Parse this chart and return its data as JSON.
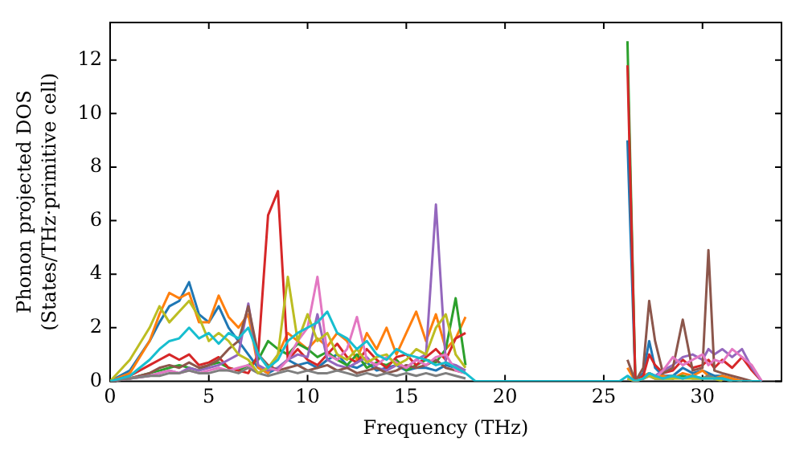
{
  "chart_data": {
    "type": "line",
    "xlabel": "Frequency (THz)",
    "ylabel": "Phonon projected DOS\n(States/THz·primitive cell)",
    "xlim": [
      0,
      34
    ],
    "ylim": [
      0,
      13.4
    ],
    "xticks": [
      0,
      5,
      10,
      15,
      20,
      25,
      30
    ],
    "yticks": [
      0,
      2,
      4,
      6,
      8,
      10,
      12
    ],
    "grid": false,
    "legend": false,
    "marker": "none",
    "line_style": "solid",
    "x": [
      0,
      1,
      2,
      2.5,
      3,
      3.5,
      4,
      4.5,
      5,
      5.5,
      6,
      6.5,
      7,
      7.5,
      8,
      8.5,
      9,
      9.5,
      10,
      10.5,
      11,
      11.5,
      12,
      12.5,
      13,
      13.5,
      14,
      14.5,
      15,
      15.5,
      16,
      16.5,
      17,
      17.5,
      18,
      18.5,
      20,
      25.8,
      26.2,
      26.6,
      27,
      27.3,
      27.6,
      28,
      28.5,
      29,
      29.5,
      30,
      30.3,
      30.6,
      31,
      31.5,
      32,
      32.5,
      33
    ],
    "series": [
      {
        "color": "#1f77b4",
        "values": [
          0,
          0.4,
          1.5,
          2.2,
          2.8,
          3.0,
          3.7,
          2.5,
          2.2,
          2.8,
          2.0,
          1.5,
          1.0,
          0.5,
          0.3,
          0.5,
          0.8,
          0.6,
          0.7,
          0.5,
          0.8,
          1.0,
          0.6,
          0.5,
          0.7,
          0.4,
          0.5,
          0.6,
          0.4,
          0.5,
          0.5,
          0.4,
          0.6,
          0.5,
          0.3,
          null,
          null,
          null,
          9.0,
          0,
          0.3,
          1.5,
          0.5,
          0.2,
          0.2,
          0.5,
          0.3,
          0.4,
          0.3,
          0.2,
          0.2,
          0.1,
          0,
          null,
          null
        ]
      },
      {
        "color": "#ff7f0e",
        "values": [
          0,
          0.3,
          1.5,
          2.5,
          3.3,
          3.1,
          3.3,
          2.2,
          2.2,
          3.2,
          2.4,
          2.0,
          2.5,
          0.5,
          0.3,
          1.0,
          1.8,
          1.5,
          1.2,
          1.6,
          1.3,
          1.8,
          1.5,
          0.8,
          1.8,
          1.2,
          2.0,
          1.0,
          1.8,
          2.6,
          1.5,
          2.5,
          1.2,
          1.6,
          2.4,
          null,
          null,
          null,
          0.5,
          0,
          0.2,
          0.3,
          0.2,
          0.2,
          0.1,
          0.3,
          0.2,
          0.4,
          0.2,
          0.1,
          0.2,
          0.1,
          0,
          null,
          null
        ]
      },
      {
        "color": "#2ca02c",
        "values": [
          0,
          0.1,
          0.3,
          0.4,
          0.5,
          0.6,
          0.5,
          0.4,
          0.6,
          0.7,
          0.5,
          0.4,
          0.6,
          0.8,
          1.5,
          1.2,
          1.0,
          1.4,
          1.2,
          0.9,
          1.1,
          0.8,
          0.6,
          1.0,
          0.5,
          0.7,
          0.6,
          0.8,
          0.4,
          0.6,
          0.8,
          0.7,
          1.2,
          3.1,
          0.6,
          null,
          null,
          null,
          12.7,
          0,
          0.1,
          0.2,
          0.1,
          0.1,
          0.1,
          0.2,
          0.1,
          0.1,
          0.2,
          0.1,
          0.1,
          0,
          null,
          null,
          null
        ]
      },
      {
        "color": "#d62728",
        "values": [
          0,
          0.2,
          0.6,
          0.8,
          1.0,
          0.8,
          1.0,
          0.6,
          0.7,
          0.9,
          0.5,
          0.4,
          0.3,
          1.0,
          6.2,
          7.1,
          0.8,
          1.2,
          0.8,
          0.6,
          1.0,
          1.4,
          0.9,
          0.7,
          1.2,
          0.8,
          0.5,
          0.9,
          1.0,
          0.6,
          0.9,
          1.2,
          0.8,
          1.6,
          1.8,
          null,
          null,
          null,
          11.8,
          0,
          0.2,
          1.0,
          0.6,
          0.3,
          0.4,
          0.8,
          0.5,
          0.6,
          0.8,
          0.5,
          0.8,
          0.5,
          0.9,
          0.4,
          0
        ]
      },
      {
        "color": "#9467bd",
        "values": [
          0,
          0.1,
          0.2,
          0.3,
          0.4,
          0.3,
          0.5,
          0.4,
          0.5,
          0.6,
          0.8,
          1.0,
          2.9,
          0.6,
          0.4,
          0.5,
          0.8,
          1.0,
          0.9,
          2.5,
          0.8,
          0.6,
          0.5,
          0.7,
          0.9,
          0.5,
          0.4,
          0.6,
          0.5,
          0.8,
          1.0,
          6.6,
          0.7,
          0.6,
          0.4,
          null,
          null,
          null,
          0.2,
          0,
          0.1,
          0.3,
          0.2,
          0.4,
          0.6,
          0.9,
          1.0,
          0.8,
          1.2,
          1.0,
          1.2,
          0.9,
          1.2,
          0.5,
          0
        ]
      },
      {
        "color": "#8c564b",
        "values": [
          0,
          0.1,
          0.3,
          0.5,
          0.6,
          0.5,
          0.7,
          0.5,
          0.6,
          0.8,
          1.2,
          1.5,
          2.8,
          1.0,
          0.6,
          0.4,
          0.5,
          0.6,
          0.4,
          0.5,
          0.6,
          0.4,
          0.5,
          0.3,
          0.4,
          0.5,
          0.3,
          0.4,
          0.6,
          0.5,
          0.6,
          0.8,
          0.5,
          0.4,
          0.3,
          null,
          null,
          null,
          0.8,
          0,
          0.5,
          3.0,
          1.5,
          0.3,
          0.5,
          2.3,
          0.4,
          0.5,
          4.9,
          0.4,
          0.3,
          0.2,
          0.1,
          0,
          null
        ]
      },
      {
        "color": "#e377c2",
        "values": [
          0,
          0.1,
          0.2,
          0.3,
          0.4,
          0.3,
          0.4,
          0.3,
          0.4,
          0.5,
          0.4,
          0.5,
          0.6,
          0.3,
          0.5,
          0.4,
          0.8,
          1.5,
          2.0,
          3.9,
          1.0,
          0.8,
          1.2,
          2.4,
          0.8,
          0.6,
          0.9,
          0.7,
          0.5,
          0.8,
          0.6,
          0.9,
          1.0,
          0.4,
          0.3,
          null,
          null,
          null,
          0.1,
          0,
          0.1,
          0.2,
          0.1,
          0.4,
          0.9,
          0.6,
          0.8,
          1.0,
          0.6,
          0.8,
          0.7,
          1.2,
          0.9,
          0.6,
          0
        ]
      },
      {
        "color": "#7f7f7f",
        "values": [
          0,
          0.1,
          0.2,
          0.2,
          0.3,
          0.3,
          0.4,
          0.3,
          0.3,
          0.4,
          0.4,
          0.3,
          0.5,
          0.3,
          0.2,
          0.3,
          0.4,
          0.3,
          0.4,
          0.3,
          0.3,
          0.4,
          0.3,
          0.2,
          0.3,
          0.2,
          0.3,
          0.2,
          0.3,
          0.2,
          0.3,
          0.2,
          0.3,
          0.2,
          0.1,
          null,
          null,
          null,
          0.1,
          0,
          0.1,
          0.2,
          0.1,
          0.1,
          0.2,
          0.1,
          0.2,
          0.1,
          0.2,
          0.1,
          0.1,
          0,
          null,
          null,
          null
        ]
      },
      {
        "color": "#bcbd22",
        "values": [
          0,
          0.8,
          2.0,
          2.8,
          2.2,
          2.6,
          3.0,
          2.4,
          1.5,
          1.8,
          1.5,
          1.0,
          0.8,
          0.3,
          0.5,
          1.0,
          3.9,
          1.5,
          2.5,
          1.5,
          1.8,
          1.0,
          0.8,
          1.2,
          0.7,
          0.9,
          1.0,
          0.6,
          0.8,
          1.2,
          1.0,
          2.0,
          2.5,
          1.0,
          0.5,
          null,
          null,
          null,
          0.1,
          0,
          0.1,
          0.2,
          0.1,
          0.1,
          0.1,
          0.1,
          0.1,
          0.1,
          0.1,
          0.1,
          0,
          null,
          null,
          null,
          null
        ]
      },
      {
        "color": "#17becf",
        "values": [
          0,
          0.2,
          0.8,
          1.2,
          1.5,
          1.6,
          2.0,
          1.6,
          1.8,
          1.4,
          1.8,
          1.6,
          2.0,
          1.0,
          0.5,
          0.8,
          1.5,
          1.8,
          2.0,
          2.2,
          2.6,
          1.8,
          1.6,
          1.2,
          1.5,
          1.0,
          0.8,
          1.2,
          1.0,
          0.9,
          0.8,
          0.6,
          0.7,
          0.5,
          0.3,
          0,
          0,
          0,
          0.2,
          0,
          0.1,
          0.3,
          0.2,
          0.1,
          0.2,
          0.1,
          0.2,
          0.1,
          0.1,
          0.1,
          0.1,
          0,
          0,
          0,
          0
        ]
      }
    ]
  }
}
